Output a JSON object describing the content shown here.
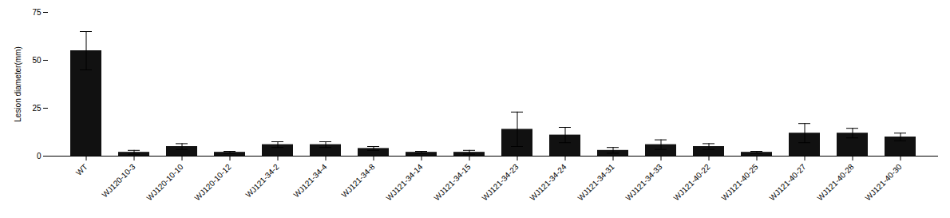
{
  "chart_data": {
    "type": "bar",
    "categories": [
      "WT",
      "WJ120-10-3",
      "WJ120-10-10",
      "WJ120-10-12",
      "WJ121-34-2",
      "WJ121-34-4",
      "WJ121-34-8",
      "WJ121-34-14",
      "WJ121-34-15",
      "WJ121-34-23",
      "WJ121-34-24",
      "WJ121-34-31",
      "WJ121-34-33",
      "WJ121-40-22",
      "WJ121-40-25",
      "WJ121-40-27",
      "WJ121-40-28",
      "WJ121-40-30"
    ],
    "values": [
      55,
      2,
      5,
      2,
      6,
      6,
      4,
      2,
      2,
      14,
      11,
      3,
      6,
      5,
      2,
      12,
      12,
      10
    ],
    "errors": [
      10,
      1,
      1.5,
      0.5,
      1.5,
      1.5,
      1,
      0.5,
      1,
      9,
      4,
      1.5,
      2.5,
      1.5,
      0.5,
      5,
      2.5,
      2
    ],
    "color": "#111111",
    "ylabel": "Lesion diameter(mm)",
    "ylim": [
      0,
      75
    ],
    "yticks": [
      0,
      25,
      50,
      75
    ],
    "grid": false
  }
}
